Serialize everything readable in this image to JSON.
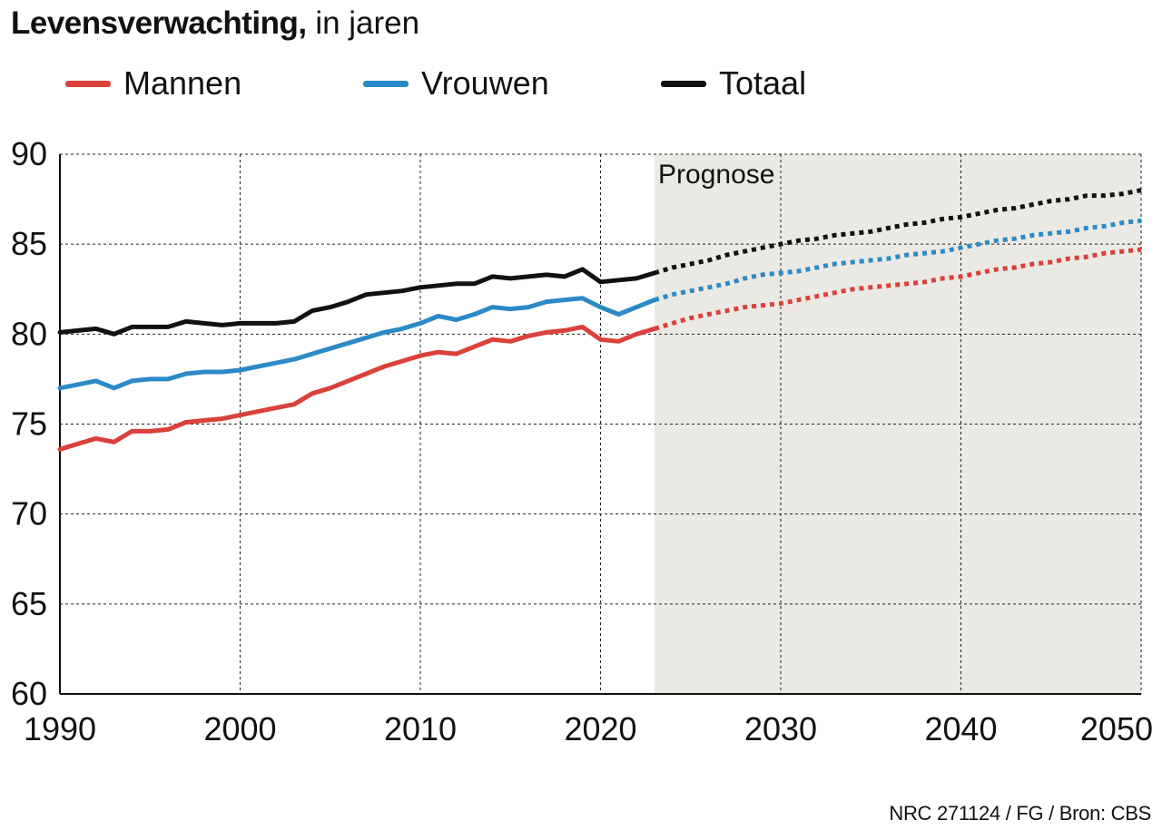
{
  "title": {
    "bold": "Levensverwachting,",
    "rest": "in jaren"
  },
  "source": "NRC 271124 / FG / Bron: CBS",
  "chart_data": {
    "type": "line",
    "title": "Levensverwachting, in jaren",
    "xlabel": "",
    "ylabel": "",
    "xlim": [
      1990,
      2050
    ],
    "ylim": [
      60,
      90
    ],
    "x_ticks": [
      1990,
      2000,
      2010,
      2020,
      2030,
      2040,
      2050
    ],
    "y_ticks": [
      60,
      65,
      70,
      75,
      80,
      85,
      90
    ],
    "grid": true,
    "grid_style": "dashed",
    "legend_position": "top",
    "forecast": {
      "label": "Prognose",
      "from": 2023,
      "to": 2050,
      "shade_color": "#ebe9e4",
      "style": "dotted"
    },
    "series": [
      {
        "name": "Mannen",
        "color": "#d9413a",
        "x": [
          1990,
          1991,
          1992,
          1993,
          1994,
          1995,
          1996,
          1997,
          1998,
          1999,
          2000,
          2001,
          2002,
          2003,
          2004,
          2005,
          2006,
          2007,
          2008,
          2009,
          2010,
          2011,
          2012,
          2013,
          2014,
          2015,
          2016,
          2017,
          2018,
          2019,
          2020,
          2021,
          2022,
          2023,
          2024,
          2025,
          2026,
          2027,
          2028,
          2029,
          2030,
          2031,
          2032,
          2033,
          2034,
          2035,
          2036,
          2037,
          2038,
          2039,
          2040,
          2041,
          2042,
          2043,
          2044,
          2045,
          2046,
          2047,
          2048,
          2049,
          2050
        ],
        "values": [
          73.6,
          73.9,
          74.2,
          74.0,
          74.6,
          74.6,
          74.7,
          75.1,
          75.2,
          75.3,
          75.5,
          75.7,
          75.9,
          76.1,
          76.7,
          77.0,
          77.4,
          77.8,
          78.2,
          78.5,
          78.8,
          79.0,
          78.9,
          79.3,
          79.7,
          79.6,
          79.9,
          80.1,
          80.2,
          80.4,
          79.7,
          79.6,
          80.0,
          80.3,
          80.6,
          80.9,
          81.1,
          81.3,
          81.5,
          81.6,
          81.7,
          81.9,
          82.1,
          82.3,
          82.5,
          82.6,
          82.7,
          82.8,
          82.9,
          83.1,
          83.2,
          83.4,
          83.6,
          83.7,
          83.9,
          84.0,
          84.2,
          84.3,
          84.5,
          84.6,
          84.7
        ]
      },
      {
        "name": "Vrouwen",
        "color": "#2b8ac6",
        "x": [
          1990,
          1991,
          1992,
          1993,
          1994,
          1995,
          1996,
          1997,
          1998,
          1999,
          2000,
          2001,
          2002,
          2003,
          2004,
          2005,
          2006,
          2007,
          2008,
          2009,
          2010,
          2011,
          2012,
          2013,
          2014,
          2015,
          2016,
          2017,
          2018,
          2019,
          2020,
          2021,
          2022,
          2023,
          2024,
          2025,
          2026,
          2027,
          2028,
          2029,
          2030,
          2031,
          2032,
          2033,
          2034,
          2035,
          2036,
          2037,
          2038,
          2039,
          2040,
          2041,
          2042,
          2043,
          2044,
          2045,
          2046,
          2047,
          2048,
          2049,
          2050
        ],
        "values": [
          77.0,
          77.2,
          77.4,
          77.0,
          77.4,
          77.5,
          77.5,
          77.8,
          77.9,
          77.9,
          78.0,
          78.2,
          78.4,
          78.6,
          78.9,
          79.2,
          79.5,
          79.8,
          80.1,
          80.3,
          80.6,
          81.0,
          80.8,
          81.1,
          81.5,
          81.4,
          81.5,
          81.8,
          81.9,
          82.0,
          81.5,
          81.1,
          81.5,
          81.9,
          82.2,
          82.4,
          82.6,
          82.8,
          83.1,
          83.3,
          83.4,
          83.5,
          83.7,
          83.9,
          84.0,
          84.1,
          84.2,
          84.4,
          84.5,
          84.6,
          84.8,
          85.0,
          85.2,
          85.3,
          85.5,
          85.6,
          85.7,
          85.9,
          86.0,
          86.2,
          86.3
        ]
      },
      {
        "name": "Totaal",
        "color": "#111111",
        "x": [
          1990,
          1991,
          1992,
          1993,
          1994,
          1995,
          1996,
          1997,
          1998,
          1999,
          2000,
          2001,
          2002,
          2003,
          2004,
          2005,
          2006,
          2007,
          2008,
          2009,
          2010,
          2011,
          2012,
          2013,
          2014,
          2015,
          2016,
          2017,
          2018,
          2019,
          2020,
          2021,
          2022,
          2023,
          2024,
          2025,
          2026,
          2027,
          2028,
          2029,
          2030,
          2031,
          2032,
          2033,
          2034,
          2035,
          2036,
          2037,
          2038,
          2039,
          2040,
          2041,
          2042,
          2043,
          2044,
          2045,
          2046,
          2047,
          2048,
          2049,
          2050
        ],
        "values": [
          80.1,
          80.2,
          80.3,
          80.0,
          80.4,
          80.4,
          80.4,
          80.7,
          80.6,
          80.5,
          80.6,
          80.6,
          80.6,
          80.7,
          81.3,
          81.5,
          81.8,
          82.2,
          82.3,
          82.4,
          82.6,
          82.7,
          82.8,
          82.8,
          83.2,
          83.1,
          83.2,
          83.3,
          83.2,
          83.6,
          82.9,
          83.0,
          83.1,
          83.4,
          83.7,
          83.9,
          84.1,
          84.4,
          84.6,
          84.8,
          85.0,
          85.2,
          85.3,
          85.5,
          85.6,
          85.7,
          85.9,
          86.1,
          86.2,
          86.4,
          86.5,
          86.7,
          86.9,
          87.0,
          87.2,
          87.4,
          87.5,
          87.7,
          87.7,
          87.8,
          88.0
        ]
      }
    ]
  }
}
